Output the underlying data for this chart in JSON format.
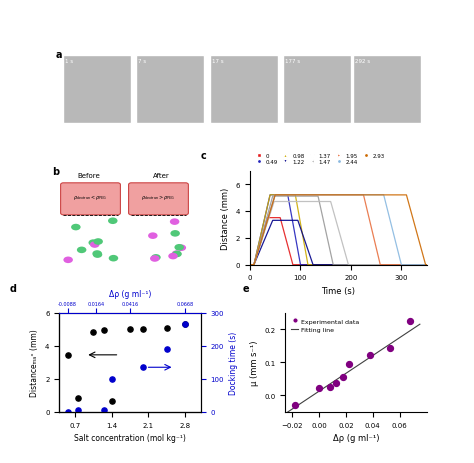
{
  "panel_c": {
    "legend_labels": [
      "0",
      "0.49",
      "0.98",
      "1.22",
      "1.37",
      "1.47",
      "1.95",
      "2.44",
      "2.93"
    ],
    "legend_markers": [
      "s",
      "o",
      "^",
      "v",
      "*",
      "<",
      ">",
      "o",
      "o"
    ],
    "colors": [
      "#e41a1c",
      "#4444cc",
      "#d4a800",
      "#1a1aaa",
      "#888888",
      "#aaaaaa",
      "#e87050",
      "#88b8d8",
      "#d47800"
    ],
    "xlabel": "Time (s)",
    "ylabel": "Distance (mm)",
    "xlim": [
      0,
      350
    ],
    "ylim": [
      0,
      7
    ],
    "yticks": [
      0,
      2,
      4,
      6
    ],
    "xticks": [
      0,
      100,
      200,
      300
    ]
  },
  "panel_d": {
    "black_x": [
      0.56,
      0.75,
      1.05,
      1.25,
      1.4,
      1.75,
      2.0,
      2.45,
      2.8
    ],
    "black_y": [
      3.45,
      0.85,
      4.8,
      4.95,
      0.65,
      5.0,
      5.0,
      5.05,
      5.3
    ],
    "blue_x": [
      0.56,
      0.75,
      1.25,
      1.4,
      2.0,
      2.45,
      2.8
    ],
    "blue_y": [
      0,
      5,
      5,
      100,
      135,
      190,
      265
    ],
    "xlabel": "Salt concentration (mol kg⁻¹)",
    "ylabel_left": "Distanceₘₐˣ (mm)",
    "ylabel_right": "Docking time (s)",
    "xlim": [
      0.4,
      3.1
    ],
    "ylim_left": [
      0,
      6
    ],
    "ylim_right": [
      0,
      300
    ],
    "xticks": [
      0.7,
      1.4,
      2.1,
      2.8
    ],
    "top_xticklabels": [
      "-0.0088",
      "0.0164",
      "0.0416",
      "0.0668"
    ],
    "top_xlabel": "Δρ (g ml⁻¹)"
  },
  "panel_e": {
    "x": [
      -0.018,
      0.0,
      0.008,
      0.013,
      0.018,
      0.022,
      0.038,
      0.053,
      0.068
    ],
    "y": [
      -0.03,
      0.022,
      0.026,
      0.037,
      0.057,
      0.095,
      0.122,
      0.143,
      0.225
    ],
    "fit_x": [
      -0.025,
      0.075
    ],
    "fit_y": [
      -0.055,
      0.215
    ],
    "xlabel": "Δρ (g ml⁻¹)",
    "ylabel": "μ (mm s⁻¹)",
    "xlim": [
      -0.025,
      0.08
    ],
    "ylim": [
      -0.05,
      0.25
    ],
    "xticks": [
      -0.02,
      0.0,
      0.02,
      0.04,
      0.06
    ],
    "yticks": [
      0.0,
      0.1,
      0.2
    ],
    "marker_color": "#800080",
    "line_color": "#404040"
  }
}
